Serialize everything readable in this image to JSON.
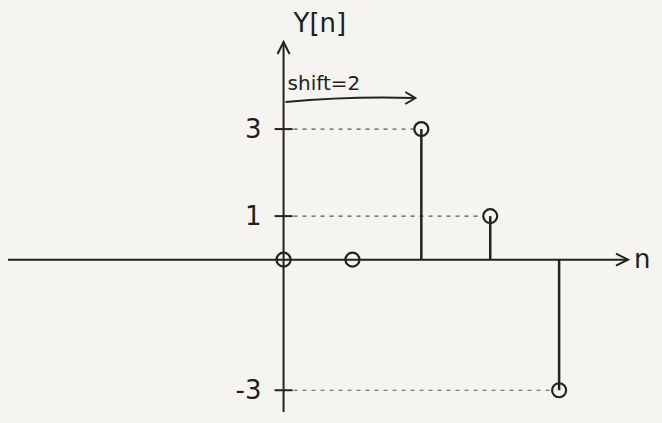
{
  "chart_data": {
    "type": "stem",
    "y_label": "Y[n]",
    "x_label": "n",
    "annotations": [
      "shift=2"
    ],
    "x": [
      0,
      1,
      2,
      3,
      4
    ],
    "values": [
      0,
      0,
      3,
      1,
      -3
    ],
    "xlim": [
      -4,
      5
    ],
    "ylim": [
      -3.5,
      5
    ],
    "yticks": [
      -3,
      1,
      3
    ],
    "tick_labels": "y",
    "color": "#222222",
    "marker": "circle"
  }
}
